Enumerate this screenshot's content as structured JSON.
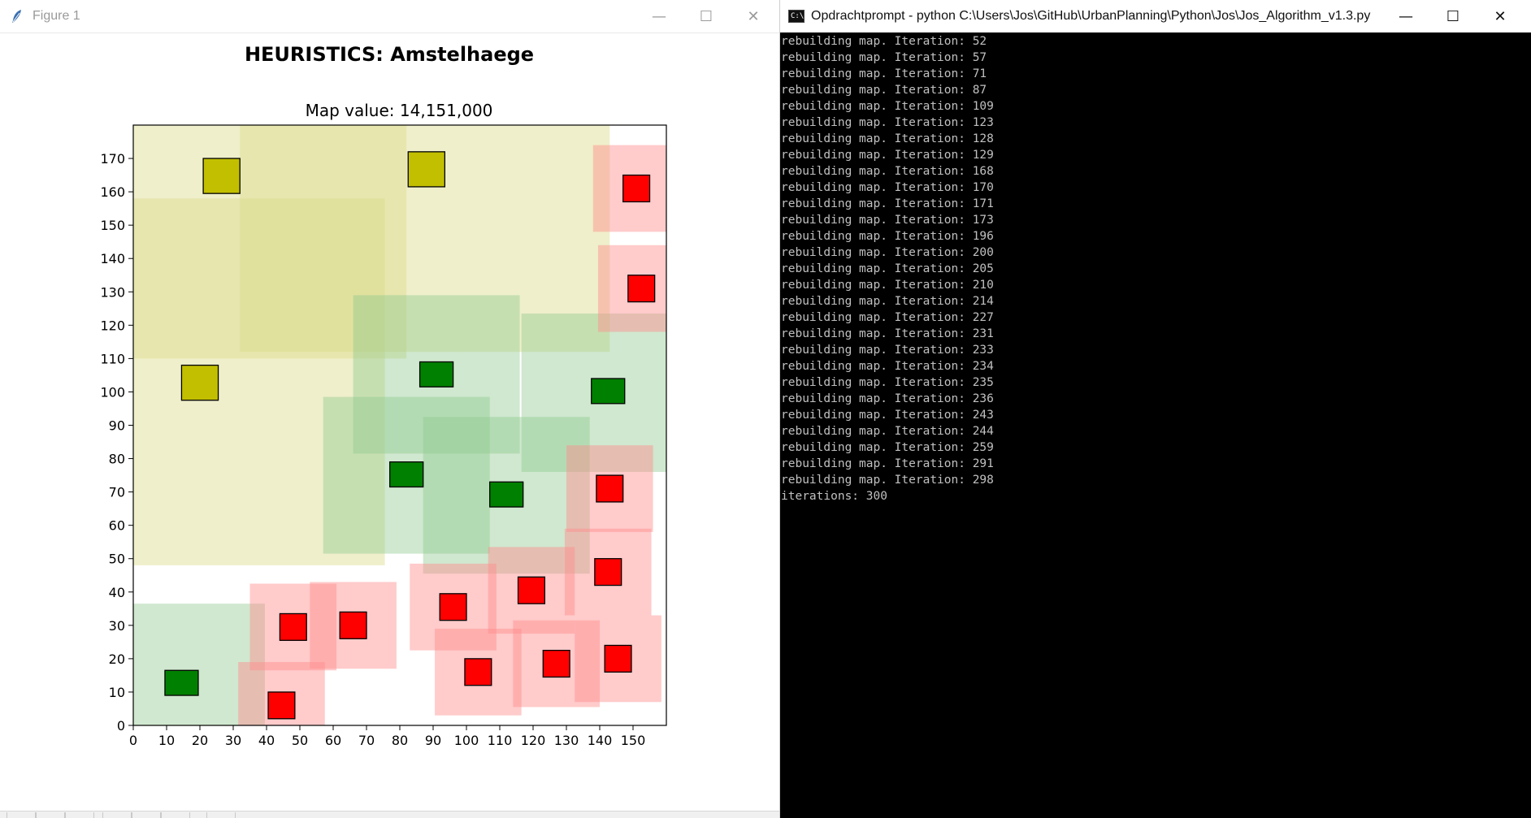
{
  "figure_window": {
    "title": "Figure 1",
    "controls": {
      "minimize": "—",
      "maximize": "☐",
      "close": "✕"
    }
  },
  "console_window": {
    "title": "Opdrachtprompt - python  C:\\Users\\Jos\\GitHub\\UrbanPlanning\\Python\\Jos\\Jos_Algorithm_v1.3.py",
    "icon_text": "C:\\",
    "controls": {
      "minimize": "—",
      "maximize": "☐",
      "close": "✕"
    },
    "lines": [
      "rebuilding map. Iteration: 52",
      "rebuilding map. Iteration: 57",
      "rebuilding map. Iteration: 71",
      "rebuilding map. Iteration: 87",
      "rebuilding map. Iteration: 109",
      "rebuilding map. Iteration: 123",
      "rebuilding map. Iteration: 128",
      "rebuilding map. Iteration: 129",
      "rebuilding map. Iteration: 168",
      "rebuilding map. Iteration: 170",
      "rebuilding map. Iteration: 171",
      "rebuilding map. Iteration: 173",
      "rebuilding map. Iteration: 196",
      "rebuilding map. Iteration: 200",
      "rebuilding map. Iteration: 205",
      "rebuilding map. Iteration: 210",
      "rebuilding map. Iteration: 214",
      "rebuilding map. Iteration: 227",
      "rebuilding map. Iteration: 231",
      "rebuilding map. Iteration: 233",
      "rebuilding map. Iteration: 234",
      "rebuilding map. Iteration: 235",
      "rebuilding map. Iteration: 236",
      "rebuilding map. Iteration: 243",
      "rebuilding map. Iteration: 244",
      "rebuilding map. Iteration: 259",
      "rebuilding map. Iteration: 291",
      "rebuilding map. Iteration: 298",
      "iterations: 300"
    ]
  },
  "colors": {
    "yellow_house": "#c2bf00",
    "yellow_zone": "#dcdc8c",
    "green_house": "#008000",
    "green_zone": "#8cc88c",
    "red_house": "#ff0000",
    "red_zone": "#ff8c8c"
  },
  "chart_data": {
    "type": "scatter",
    "title": "HEURISTICS: Amstelhaege",
    "subtitle": "Map value: 14,151,000",
    "xlim": [
      0,
      160
    ],
    "ylim": [
      0,
      180
    ],
    "xticks": [
      "0",
      "10",
      "20",
      "30",
      "40",
      "50",
      "60",
      "70",
      "80",
      "90",
      "100",
      "110",
      "120",
      "130",
      "140",
      "150"
    ],
    "yticks": [
      "0",
      "10",
      "20",
      "30",
      "40",
      "50",
      "60",
      "70",
      "80",
      "90",
      "100",
      "110",
      "120",
      "130",
      "140",
      "150",
      "160",
      "170"
    ],
    "grid": false,
    "series": [
      {
        "kind": "yellow",
        "houses": [
          {
            "x": 21,
            "y": 159.5,
            "w": 11,
            "h": 10.5,
            "zone": [
              0,
              110,
              82,
              180
            ]
          },
          {
            "x": 82.5,
            "y": 161.5,
            "w": 11,
            "h": 10.5,
            "zone": [
              32,
              112,
              143,
              180
            ]
          },
          {
            "x": 14.5,
            "y": 97.5,
            "w": 11,
            "h": 10.5,
            "zone": [
              0,
              48,
              75.5,
              158
            ]
          }
        ]
      },
      {
        "kind": "green",
        "houses": [
          {
            "x": 86,
            "y": 101.5,
            "w": 10,
            "h": 7.5,
            "zone": [
              66,
              81.5,
              116,
              129
            ]
          },
          {
            "x": 137.5,
            "y": 96.5,
            "w": 10,
            "h": 7.5,
            "zone": [
              116.5,
              76,
              160,
              123.5
            ]
          },
          {
            "x": 77,
            "y": 71.5,
            "w": 10,
            "h": 7.5,
            "zone": [
              57,
              51.5,
              107,
              98.5
            ]
          },
          {
            "x": 107,
            "y": 65.5,
            "w": 10,
            "h": 7.5,
            "zone": [
              87,
              45.5,
              137,
              92.5
            ]
          },
          {
            "x": 9.5,
            "y": 9,
            "w": 10,
            "h": 7.5,
            "zone": [
              0,
              0,
              39.5,
              36.5
            ]
          }
        ]
      },
      {
        "kind": "red",
        "houses": [
          {
            "x": 147,
            "y": 157,
            "w": 8,
            "h": 8,
            "zone": [
              138,
              148,
              160,
              174
            ]
          },
          {
            "x": 148.5,
            "y": 127,
            "w": 8,
            "h": 8,
            "zone": [
              139.5,
              118,
              160,
              144
            ]
          },
          {
            "x": 139,
            "y": 67,
            "w": 8,
            "h": 8,
            "zone": [
              130,
              58,
              156,
              84
            ]
          },
          {
            "x": 138.5,
            "y": 42,
            "w": 8,
            "h": 8,
            "zone": [
              129.5,
              33,
              155.5,
              59
            ]
          },
          {
            "x": 115.5,
            "y": 36.5,
            "w": 8,
            "h": 8,
            "zone": [
              106.5,
              27.5,
              132.5,
              53.5
            ]
          },
          {
            "x": 92,
            "y": 31.5,
            "w": 8,
            "h": 8,
            "zone": [
              83,
              22.5,
              109,
              48.5
            ]
          },
          {
            "x": 44,
            "y": 25.5,
            "w": 8,
            "h": 8,
            "zone": [
              35,
              16.5,
              61,
              42.5
            ]
          },
          {
            "x": 62,
            "y": 26,
            "w": 8,
            "h": 8,
            "zone": [
              53,
              17,
              79,
              43
            ]
          },
          {
            "x": 99.5,
            "y": 12,
            "w": 8,
            "h": 8,
            "zone": [
              90.5,
              3,
              116.5,
              29
            ]
          },
          {
            "x": 123,
            "y": 14.5,
            "w": 8,
            "h": 8,
            "zone": [
              114,
              5.5,
              140,
              31.5
            ]
          },
          {
            "x": 141.5,
            "y": 16,
            "w": 8,
            "h": 8,
            "zone": [
              132.5,
              7,
              158.5,
              33
            ]
          },
          {
            "x": 40.5,
            "y": 2,
            "w": 8,
            "h": 8,
            "zone": [
              31.5,
              -7,
              57.5,
              19
            ]
          }
        ]
      }
    ]
  }
}
